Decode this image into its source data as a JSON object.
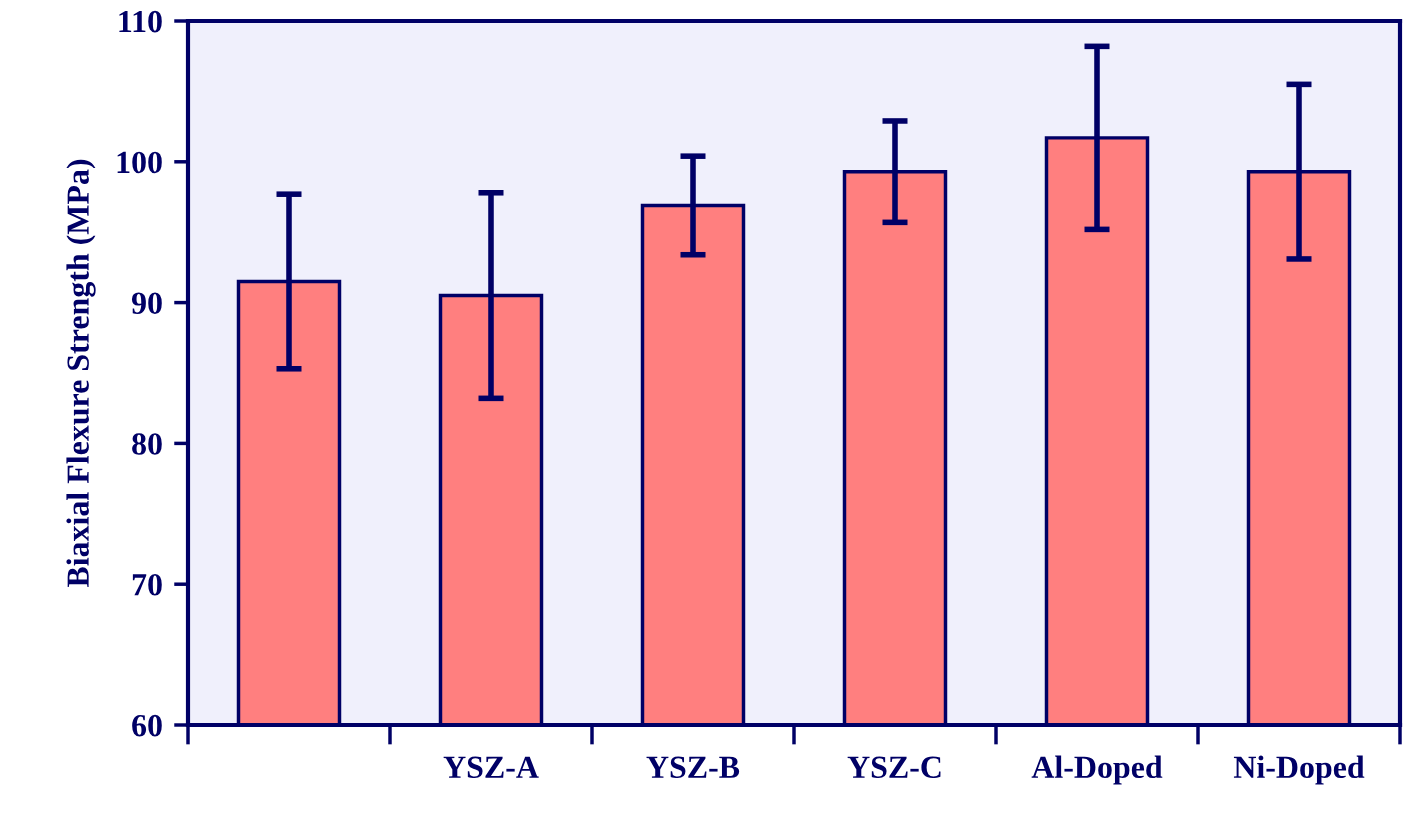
{
  "chart_data": {
    "type": "bar",
    "ylabel": "Biaxial Flexure Strength (MPa)",
    "categories": [
      null,
      "YSZ-A",
      "YSZ-B",
      "YSZ-C",
      "Al-Doped",
      "Ni-Doped"
    ],
    "values": [
      91.5,
      90.5,
      96.9,
      99.3,
      101.7,
      99.3
    ],
    "errors": [
      6.2,
      7.3,
      3.5,
      3.6,
      6.5,
      6.2
    ],
    "color": "#ff7f7f",
    "ylim": [
      60,
      110
    ],
    "yticks": [
      60,
      70,
      80,
      90,
      100,
      110
    ],
    "grid": false,
    "legend": false
  }
}
